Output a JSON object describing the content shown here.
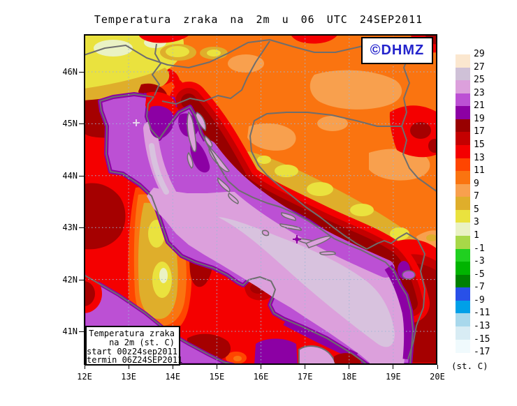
{
  "title": "Temperatura zraka na 2m u 06 UTC 24SEP2011",
  "watermark": "©DHMZ",
  "colorbar": {
    "labels": [
      "29",
      "27",
      "25",
      "23",
      "21",
      "19",
      "17",
      "15",
      "13",
      "11",
      "9",
      "7",
      "5",
      "3",
      "1",
      "-1",
      "-3",
      "-5",
      "-7",
      "-9",
      "-11",
      "-13",
      "-15",
      "-17"
    ],
    "colors": [
      "#FBE7CF",
      "#CFC1D7",
      "#DCA0DC",
      "#BC50D4",
      "#8C00A4",
      "#980000",
      "#C40000",
      "#F40000",
      "#FF4500",
      "#FA7410",
      "#F8A04E",
      "#DFAE2B",
      "#EAE23E",
      "#EAF2C4",
      "#A8D848",
      "#20D020",
      "#00B400",
      "#008000",
      "#2850E8",
      "#00A0E8",
      "#A8D8EC",
      "#D8ECF4",
      "#F0FAFD"
    ],
    "unit_label": "(st. C)"
  },
  "axes": {
    "lat_labels": [
      "46N",
      "45N",
      "44N",
      "43N",
      "42N",
      "41N"
    ],
    "lon_labels": [
      "12E",
      "13E",
      "14E",
      "15E",
      "16E",
      "17E",
      "18E",
      "19E",
      "20E"
    ]
  },
  "legend_box": {
    "lines": [
      "Temperatura zraka",
      "na 2m (st. C)",
      "start 00z24sep2011",
      "termin 06Z24SEP2011"
    ]
  },
  "map_colors": {
    "sea_body": "#DCA0DC",
    "sea_margin": "#BC50D4",
    "coast_ring": "#8C00A4",
    "land_hot": "#F40000",
    "land_base": "#FA7410",
    "border_gray": "#6E6E6E",
    "grid_blue": "#9EB6D6"
  }
}
